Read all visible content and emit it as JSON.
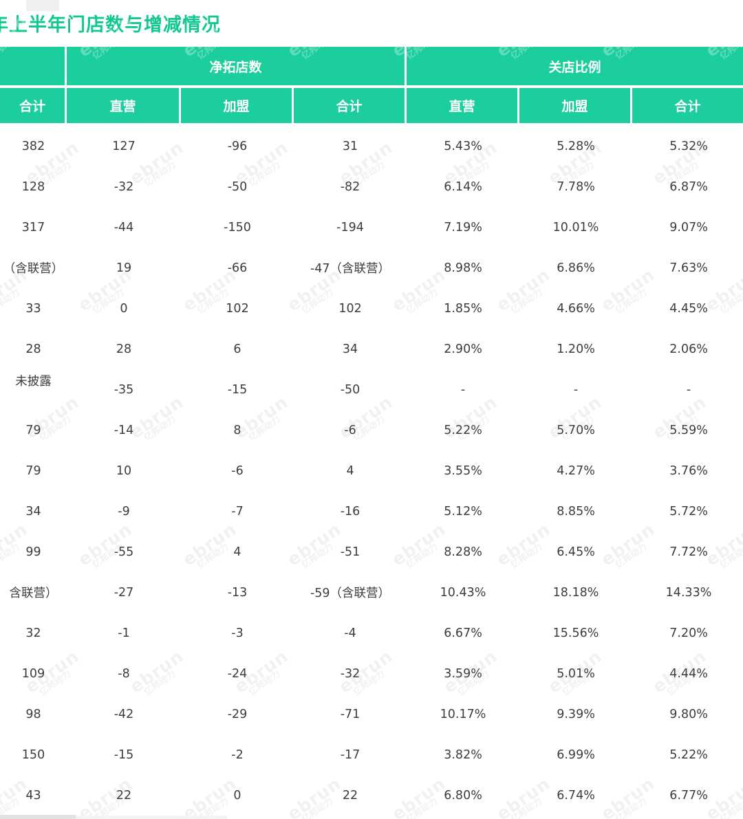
{
  "page": {
    "title_cut": "年",
    "title": "上半年门店数与增减情况",
    "title_color": "#12C890",
    "accent_color": "#1CCE9D"
  },
  "watermark": {
    "brand": "ebrun",
    "brand_cn": "亿邦动力"
  },
  "table": {
    "group_headers": [
      "",
      "净拓店数",
      "关店比例"
    ],
    "sub_headers": [
      "合计",
      "直营",
      "加盟",
      "合计",
      "直营",
      "加盟",
      "合计"
    ],
    "raised_cells": [
      [
        6,
        0
      ]
    ],
    "rows": [
      [
        "382",
        "127",
        "-96",
        "31",
        "5.43%",
        "5.28%",
        "5.32%"
      ],
      [
        "128",
        "-32",
        "-50",
        "-82",
        "6.14%",
        "7.78%",
        "6.87%"
      ],
      [
        "317",
        "-44",
        "-150",
        "-194",
        "7.19%",
        "10.01%",
        "9.07%"
      ],
      [
        "（含联营）",
        "19",
        "-66",
        "-47（含联营）",
        "8.98%",
        "6.86%",
        "7.63%"
      ],
      [
        "33",
        "0",
        "102",
        "102",
        "1.85%",
        "4.66%",
        "4.45%"
      ],
      [
        "28",
        "28",
        "6",
        "34",
        "2.90%",
        "1.20%",
        "2.06%"
      ],
      [
        "未披露",
        "-35",
        "-15",
        "-50",
        "-",
        "-",
        "-"
      ],
      [
        "79",
        "-14",
        "8",
        "-6",
        "5.22%",
        "5.70%",
        "5.59%"
      ],
      [
        "79",
        "10",
        "-6",
        "4",
        "3.55%",
        "4.27%",
        "3.76%"
      ],
      [
        "34",
        "-9",
        "-7",
        "-16",
        "5.12%",
        "8.85%",
        "5.72%"
      ],
      [
        "99",
        "-55",
        "4",
        "-51",
        "8.28%",
        "6.45%",
        "7.72%"
      ],
      [
        "含联营）",
        "-27",
        "-13",
        "-59（含联营）",
        "10.43%",
        "18.18%",
        "14.33%"
      ],
      [
        "32",
        "-1",
        "-3",
        "-4",
        "6.67%",
        "15.56%",
        "7.20%"
      ],
      [
        "109",
        "-8",
        "-24",
        "-32",
        "3.59%",
        "5.01%",
        "4.44%"
      ],
      [
        "98",
        "-42",
        "-29",
        "-71",
        "10.17%",
        "9.39%",
        "9.80%"
      ],
      [
        "150",
        "-15",
        "-2",
        "-17",
        "3.82%",
        "6.99%",
        "5.22%"
      ],
      [
        "43",
        "22",
        "0",
        "22",
        "6.80%",
        "6.74%",
        "6.77%"
      ]
    ]
  }
}
